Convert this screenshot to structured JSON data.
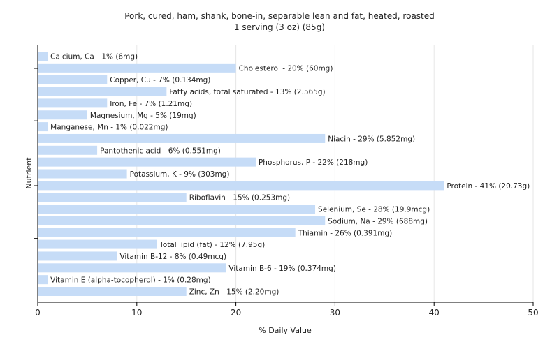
{
  "chart_data": {
    "type": "bar",
    "orientation": "horizontal",
    "title": "Pork, cured, ham, shank, bone-in, separable lean and fat, heated, roasted",
    "subtitle": "1 serving (3 oz) (85g)",
    "xlabel": "% Daily Value",
    "ylabel": "Nutrient",
    "xlim": [
      0,
      50
    ],
    "xticks": [
      0,
      10,
      20,
      30,
      40,
      50
    ],
    "grid": true,
    "bar_color": "#c6dcf7",
    "categories": [
      "Calcium, Ca",
      "Cholesterol",
      "Copper, Cu",
      "Fatty acids, total saturated",
      "Iron, Fe",
      "Magnesium, Mg",
      "Manganese, Mn",
      "Niacin",
      "Pantothenic acid",
      "Phosphorus, P",
      "Potassium, K",
      "Protein",
      "Riboflavin",
      "Selenium, Se",
      "Sodium, Na",
      "Thiamin",
      "Total lipid (fat)",
      "Vitamin B-12",
      "Vitamin B-6",
      "Vitamin E (alpha-tocopherol)",
      "Zinc, Zn"
    ],
    "values": [
      1,
      20,
      7,
      13,
      7,
      5,
      1,
      29,
      6,
      22,
      9,
      41,
      15,
      28,
      29,
      26,
      12,
      8,
      19,
      1,
      15
    ],
    "labels": [
      "Calcium, Ca - 1% (6mg)",
      "Cholesterol - 20% (60mg)",
      "Copper, Cu - 7% (0.134mg)",
      "Fatty acids, total saturated - 13% (2.565g)",
      "Iron, Fe - 7% (1.21mg)",
      "Magnesium, Mg - 5% (19mg)",
      "Manganese, Mn - 1% (0.022mg)",
      "Niacin - 29% (5.852mg)",
      "Pantothenic acid - 6% (0.551mg)",
      "Phosphorus, P - 22% (218mg)",
      "Potassium, K - 9% (303mg)",
      "Protein - 41% (20.73g)",
      "Riboflavin - 15% (0.253mg)",
      "Selenium, Se - 28% (19.9mcg)",
      "Sodium, Na - 29% (688mg)",
      "Thiamin - 26% (0.391mg)",
      "Total lipid (fat) - 12% (7.95g)",
      "Vitamin B-12 - 8% (0.49mcg)",
      "Vitamin B-6 - 19% (0.374mg)",
      "Vitamin E (alpha-tocopherol) - 1% (0.28mg)",
      "Zinc, Zn - 15% (2.20mg)"
    ]
  }
}
